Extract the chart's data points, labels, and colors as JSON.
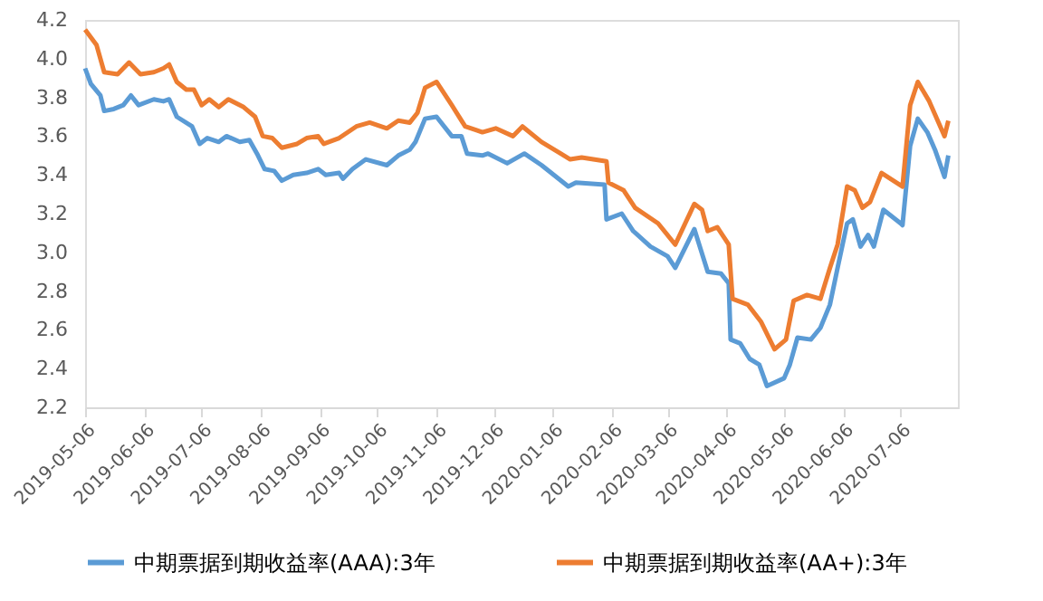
{
  "chart_data": {
    "type": "line",
    "xlim": [
      "2019-05-06",
      "2020-08-05"
    ],
    "xticks": [
      "2019-05-06",
      "2019-06-06",
      "2019-07-06",
      "2019-08-06",
      "2019-09-06",
      "2019-10-06",
      "2019-11-06",
      "2019-12-06",
      "2020-01-06",
      "2020-02-06",
      "2020-03-06",
      "2020-04-06",
      "2020-05-06",
      "2020-06-06",
      "2020-07-06"
    ],
    "ylim": [
      2.2,
      4.2
    ],
    "yticks": [
      2.2,
      2.4,
      2.6,
      2.8,
      {
        "value": 3,
        "label": "3.0"
      },
      3.2,
      3.4,
      3.6,
      3.8,
      {
        "value": 4,
        "label": "4.0"
      },
      4.2
    ],
    "grid": false,
    "legend": "bottom",
    "line_style": "solid",
    "marker": "none",
    "series": [
      {
        "name": "中期票据到期收益率(AAA):3年",
        "color": "#5b9bd5",
        "x": [
          "2019-05-06",
          "2019-05-09",
          "2019-05-14",
          "2019-05-16",
          "2019-05-21",
          "2019-05-26",
          "2019-05-30",
          "2019-06-03",
          "2019-06-11",
          "2019-06-16",
          "2019-06-19",
          "2019-06-23",
          "2019-07-01",
          "2019-07-05",
          "2019-07-09",
          "2019-07-15",
          "2019-07-19",
          "2019-07-26",
          "2019-07-31",
          "2019-08-04",
          "2019-08-08",
          "2019-08-13",
          "2019-08-17",
          "2019-08-23",
          "2019-08-30",
          "2019-09-05",
          "2019-09-09",
          "2019-09-16",
          "2019-09-18",
          "2019-09-23",
          "2019-09-30",
          "2019-10-11",
          "2019-10-17",
          "2019-10-23",
          "2019-10-26",
          "2019-10-31",
          "2019-11-06",
          "2019-11-14",
          "2019-11-19",
          "2019-11-22",
          "2019-11-30",
          "2019-12-03",
          "2019-12-13",
          "2019-12-22",
          "2019-12-31",
          "2020-01-14",
          "2020-01-18",
          "2020-02-02",
          "2020-02-03",
          "2020-02-11",
          "2020-02-17",
          "2020-02-26",
          "2020-03-06",
          "2020-03-10",
          "2020-03-20",
          "2020-03-27",
          "2020-04-03",
          "2020-04-07",
          "2020-04-08",
          "2020-04-13",
          "2020-04-18",
          "2020-04-23",
          "2020-04-27",
          "2020-05-06",
          "2020-05-09",
          "2020-05-13",
          "2020-05-20",
          "2020-05-25",
          "2020-05-30",
          "2020-06-03",
          "2020-06-08",
          "2020-06-11",
          "2020-06-15",
          "2020-06-19",
          "2020-06-22",
          "2020-06-27",
          "2020-07-06",
          "2020-07-07",
          "2020-07-11",
          "2020-07-15",
          "2020-07-20",
          "2020-07-24",
          "2020-07-29",
          "2020-07-31"
        ],
        "values": [
          3.95,
          3.87,
          3.81,
          3.73,
          3.74,
          3.76,
          3.81,
          3.76,
          3.79,
          3.78,
          3.79,
          3.7,
          3.65,
          3.56,
          3.59,
          3.57,
          3.6,
          3.57,
          3.58,
          3.51,
          3.43,
          3.42,
          3.37,
          3.4,
          3.41,
          3.43,
          3.4,
          3.41,
          3.38,
          3.43,
          3.48,
          3.45,
          3.5,
          3.53,
          3.57,
          3.69,
          3.7,
          3.6,
          3.6,
          3.51,
          3.5,
          3.51,
          3.46,
          3.51,
          3.45,
          3.34,
          3.36,
          3.35,
          3.17,
          3.2,
          3.11,
          3.03,
          2.98,
          2.92,
          3.12,
          2.9,
          2.89,
          2.84,
          2.55,
          2.53,
          2.45,
          2.42,
          2.31,
          2.35,
          2.42,
          2.56,
          2.55,
          2.61,
          2.73,
          2.92,
          3.15,
          3.17,
          3.03,
          3.09,
          3.03,
          3.22,
          3.15,
          3.14,
          3.55,
          3.69,
          3.62,
          3.53,
          3.39,
          3.5
        ]
      },
      {
        "name": "中期票据到期收益率(AA+):3年",
        "color": "#ed7d31",
        "x": [
          "2019-05-06",
          "2019-05-12",
          "2019-05-16",
          "2019-05-23",
          "2019-05-29",
          "2019-06-04",
          "2019-06-11",
          "2019-06-16",
          "2019-06-19",
          "2019-06-23",
          "2019-06-28",
          "2019-07-02",
          "2019-07-06",
          "2019-07-10",
          "2019-07-15",
          "2019-07-20",
          "2019-07-28",
          "2019-08-03",
          "2019-08-07",
          "2019-08-12",
          "2019-08-17",
          "2019-08-25",
          "2019-08-30",
          "2019-09-05",
          "2019-09-08",
          "2019-09-16",
          "2019-09-25",
          "2019-10-02",
          "2019-10-11",
          "2019-10-17",
          "2019-10-23",
          "2019-10-27",
          "2019-10-31",
          "2019-11-06",
          "2019-11-14",
          "2019-11-21",
          "2019-11-27",
          "2019-11-30",
          "2019-12-07",
          "2019-12-16",
          "2019-12-21",
          "2019-12-31",
          "2020-01-10",
          "2020-01-15",
          "2020-01-21",
          "2020-02-03",
          "2020-02-04",
          "2020-02-12",
          "2020-02-18",
          "2020-03-01",
          "2020-03-10",
          "2020-03-20",
          "2020-03-24",
          "2020-03-27",
          "2020-04-01",
          "2020-04-07",
          "2020-04-09",
          "2020-04-17",
          "2020-04-24",
          "2020-05-01",
          "2020-05-07",
          "2020-05-11",
          "2020-05-18",
          "2020-05-25",
          "2020-05-30",
          "2020-06-03",
          "2020-06-08",
          "2020-06-12",
          "2020-06-16",
          "2020-06-20",
          "2020-06-26",
          "2020-07-07",
          "2020-07-11",
          "2020-07-15",
          "2020-07-21",
          "2020-07-29",
          "2020-07-31"
        ],
        "values": [
          4.15,
          4.07,
          3.93,
          3.92,
          3.98,
          3.92,
          3.93,
          3.95,
          3.97,
          3.88,
          3.84,
          3.84,
          3.76,
          3.79,
          3.75,
          3.79,
          3.75,
          3.7,
          3.6,
          3.59,
          3.54,
          3.56,
          3.59,
          3.6,
          3.56,
          3.59,
          3.65,
          3.67,
          3.64,
          3.68,
          3.67,
          3.72,
          3.85,
          3.88,
          3.76,
          3.65,
          3.63,
          3.62,
          3.64,
          3.6,
          3.65,
          3.57,
          3.51,
          3.48,
          3.49,
          3.47,
          3.36,
          3.32,
          3.23,
          3.15,
          3.04,
          3.25,
          3.22,
          3.11,
          3.13,
          3.04,
          2.76,
          2.73,
          2.64,
          2.5,
          2.55,
          2.75,
          2.78,
          2.76,
          2.92,
          3.04,
          3.34,
          3.32,
          3.23,
          3.26,
          3.41,
          3.34,
          3.76,
          3.88,
          3.78,
          3.6,
          3.68
        ]
      }
    ]
  }
}
